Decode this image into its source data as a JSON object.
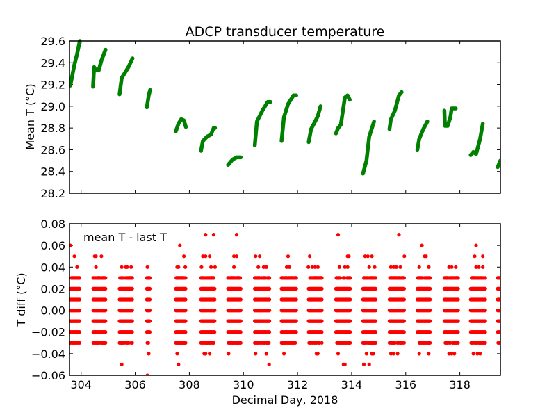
{
  "chart_data": [
    {
      "type": "line",
      "title": "ADCP transducer temperature",
      "xlabel": "",
      "ylabel": "Mean T (°C)",
      "xlim": [
        303.57,
        319.5
      ],
      "ylim": [
        28.2,
        29.6
      ],
      "yticks": [
        "28.2",
        "28.4",
        "28.6",
        "28.8",
        "29.0",
        "29.2",
        "29.4",
        "29.6"
      ],
      "ytick_values": [
        28.2,
        28.4,
        28.6,
        28.8,
        29.0,
        29.2,
        29.4,
        29.6
      ],
      "xtick_values": [
        304,
        306,
        308,
        310,
        312,
        314,
        316,
        318
      ],
      "color": "#008000",
      "grid": false,
      "series": [
        {
          "name": "mean T",
          "segments": [
            [
              [
                303.6,
                29.19
              ],
              [
                303.75,
                29.38
              ],
              [
                303.85,
                29.48
              ],
              [
                303.95,
                29.6
              ]
            ],
            [
              [
                304.44,
                29.18
              ],
              [
                304.48,
                29.36
              ],
              [
                304.55,
                29.33
              ],
              [
                304.65,
                29.33
              ],
              [
                304.75,
                29.42
              ],
              [
                304.9,
                29.52
              ]
            ],
            [
              [
                305.42,
                29.11
              ],
              [
                305.5,
                29.26
              ],
              [
                305.6,
                29.3
              ],
              [
                305.75,
                29.36
              ],
              [
                305.9,
                29.44
              ]
            ],
            [
              [
                306.43,
                28.99
              ],
              [
                306.5,
                29.1
              ],
              [
                306.55,
                29.15
              ]
            ],
            [
              [
                307.5,
                28.77
              ],
              [
                307.6,
                28.84
              ],
              [
                307.7,
                28.88
              ],
              [
                307.8,
                28.87
              ],
              [
                307.87,
                28.81
              ]
            ],
            [
              [
                308.43,
                28.59
              ],
              [
                308.5,
                28.68
              ],
              [
                308.65,
                28.72
              ],
              [
                308.8,
                28.74
              ],
              [
                308.9,
                28.8
              ],
              [
                308.95,
                28.8
              ]
            ],
            [
              [
                309.43,
                28.46
              ],
              [
                309.6,
                28.51
              ],
              [
                309.75,
                28.53
              ],
              [
                309.9,
                28.53
              ]
            ],
            [
              [
                310.42,
                28.64
              ],
              [
                310.5,
                28.86
              ],
              [
                310.7,
                28.96
              ],
              [
                310.9,
                29.04
              ],
              [
                311.0,
                29.04
              ]
            ],
            [
              [
                311.41,
                28.68
              ],
              [
                311.5,
                28.9
              ],
              [
                311.65,
                29.02
              ],
              [
                311.85,
                29.1
              ],
              [
                311.95,
                29.1
              ]
            ],
            [
              [
                312.41,
                28.67
              ],
              [
                312.5,
                28.79
              ],
              [
                312.65,
                28.86
              ],
              [
                312.75,
                28.91
              ],
              [
                312.85,
                29.0
              ]
            ],
            [
              [
                313.42,
                28.75
              ],
              [
                313.5,
                28.8
              ],
              [
                313.6,
                28.83
              ],
              [
                313.75,
                29.08
              ],
              [
                313.85,
                29.1
              ],
              [
                313.93,
                29.06
              ]
            ],
            [
              [
                314.42,
                28.38
              ],
              [
                314.55,
                28.5
              ],
              [
                314.65,
                28.72
              ],
              [
                314.83,
                28.86
              ]
            ],
            [
              [
                315.4,
                28.79
              ],
              [
                315.45,
                28.88
              ],
              [
                315.6,
                28.96
              ],
              [
                315.75,
                29.1
              ],
              [
                315.85,
                29.13
              ]
            ],
            [
              [
                316.43,
                28.6
              ],
              [
                316.5,
                28.7
              ],
              [
                316.65,
                28.79
              ],
              [
                316.8,
                28.86
              ]
            ],
            [
              [
                317.43,
                28.96
              ],
              [
                317.45,
                28.82
              ],
              [
                317.55,
                28.82
              ],
              [
                317.65,
                28.9
              ],
              [
                317.7,
                28.98
              ],
              [
                317.85,
                28.98
              ]
            ],
            [
              [
                318.4,
                28.55
              ],
              [
                318.5,
                28.58
              ],
              [
                318.6,
                28.56
              ],
              [
                318.75,
                28.7
              ],
              [
                318.85,
                28.84
              ]
            ],
            [
              [
                319.4,
                28.44
              ],
              [
                319.5,
                28.5
              ]
            ]
          ]
        }
      ]
    },
    {
      "type": "scatter",
      "title": "",
      "annotation": "mean T - last T",
      "xlabel": "Decimal Day, 2018",
      "ylabel": "T diff (°C)",
      "xlim": [
        303.57,
        319.5
      ],
      "ylim": [
        -0.06,
        0.08
      ],
      "xticks": [
        "304",
        "306",
        "308",
        "310",
        "312",
        "314",
        "316",
        "318"
      ],
      "xtick_values": [
        304,
        306,
        308,
        310,
        312,
        314,
        316,
        318
      ],
      "yticks": [
        "−0.06",
        "−0.04",
        "−0.02",
        "0.00",
        "0.02",
        "0.04",
        "0.06",
        "0.08"
      ],
      "ytick_values": [
        -0.06,
        -0.04,
        -0.02,
        0.0,
        0.02,
        0.04,
        0.06,
        0.08
      ],
      "color": "#ff0000",
      "grid": false,
      "dense_levels": [
        -0.03,
        -0.02,
        -0.01,
        0.0,
        0.01,
        0.02,
        0.03
      ],
      "clusters": [
        [
          303.6,
          303.95
        ],
        [
          304.45,
          304.9
        ],
        [
          305.42,
          305.9
        ],
        [
          306.43,
          306.55
        ],
        [
          307.5,
          307.87
        ],
        [
          308.43,
          308.95
        ],
        [
          309.43,
          309.9
        ],
        [
          310.42,
          310.97
        ],
        [
          311.41,
          311.95
        ],
        [
          312.41,
          312.9
        ],
        [
          313.42,
          313.95
        ],
        [
          314.42,
          314.9
        ],
        [
          315.4,
          315.95
        ],
        [
          316.43,
          316.9
        ],
        [
          317.43,
          317.95
        ],
        [
          318.4,
          318.95
        ],
        [
          319.4,
          319.5
        ]
      ],
      "outliers": [
        [
          303.6,
          0.06
        ],
        [
          303.75,
          0.05
        ],
        [
          303.85,
          0.04
        ],
        [
          304.5,
          0.05
        ],
        [
          304.55,
          0.05
        ],
        [
          304.75,
          0.05
        ],
        [
          304.55,
          0.04
        ],
        [
          305.5,
          -0.05
        ],
        [
          305.5,
          0.04
        ],
        [
          305.65,
          0.04
        ],
        [
          305.7,
          0.04
        ],
        [
          305.85,
          0.04
        ],
        [
          306.45,
          0.04
        ],
        [
          306.5,
          -0.04
        ],
        [
          306.45,
          -0.06
        ],
        [
          307.65,
          0.06
        ],
        [
          307.8,
          0.05
        ],
        [
          307.55,
          0.04
        ],
        [
          307.6,
          0.04
        ],
        [
          307.85,
          0.04
        ],
        [
          307.55,
          -0.04
        ],
        [
          307.6,
          -0.05
        ],
        [
          308.6,
          0.07
        ],
        [
          308.9,
          0.07
        ],
        [
          308.5,
          0.05
        ],
        [
          308.6,
          0.05
        ],
        [
          308.75,
          0.05
        ],
        [
          308.45,
          0.04
        ],
        [
          308.8,
          0.04
        ],
        [
          308.95,
          0.04
        ],
        [
          308.55,
          -0.04
        ],
        [
          308.6,
          -0.04
        ],
        [
          308.75,
          -0.04
        ],
        [
          309.75,
          0.07
        ],
        [
          309.65,
          0.05
        ],
        [
          309.75,
          0.05
        ],
        [
          309.65,
          0.04
        ],
        [
          309.45,
          -0.04
        ],
        [
          310.45,
          0.05
        ],
        [
          310.6,
          0.05
        ],
        [
          310.55,
          0.04
        ],
        [
          310.75,
          0.04
        ],
        [
          310.85,
          0.04
        ],
        [
          310.45,
          -0.04
        ],
        [
          310.85,
          -0.04
        ],
        [
          310.95,
          -0.05
        ],
        [
          311.65,
          0.05
        ],
        [
          311.6,
          0.04
        ],
        [
          311.7,
          0.04
        ],
        [
          311.5,
          -0.04
        ],
        [
          312.45,
          0.05
        ],
        [
          312.4,
          0.04
        ],
        [
          312.55,
          0.04
        ],
        [
          312.65,
          0.04
        ],
        [
          312.75,
          0.04
        ],
        [
          312.7,
          -0.04
        ],
        [
          312.75,
          -0.04
        ],
        [
          313.5,
          0.07
        ],
        [
          313.85,
          0.05
        ],
        [
          313.9,
          0.05
        ],
        [
          313.55,
          0.04
        ],
        [
          313.75,
          0.04
        ],
        [
          313.85,
          0.04
        ],
        [
          313.5,
          -0.04
        ],
        [
          313.7,
          -0.05
        ],
        [
          313.75,
          -0.05
        ],
        [
          314.5,
          0.05
        ],
        [
          314.6,
          0.05
        ],
        [
          314.75,
          0.05
        ],
        [
          314.65,
          0.04
        ],
        [
          314.85,
          0.04
        ],
        [
          314.55,
          -0.04
        ],
        [
          314.75,
          -0.04
        ],
        [
          314.8,
          -0.04
        ],
        [
          314.45,
          -0.05
        ],
        [
          314.65,
          -0.05
        ],
        [
          315.75,
          0.07
        ],
        [
          315.95,
          0.05
        ],
        [
          315.45,
          0.04
        ],
        [
          315.55,
          0.04
        ],
        [
          315.65,
          0.04
        ],
        [
          315.8,
          0.04
        ],
        [
          315.45,
          -0.04
        ],
        [
          315.55,
          -0.04
        ],
        [
          315.7,
          -0.04
        ],
        [
          316.6,
          0.06
        ],
        [
          316.7,
          0.05
        ],
        [
          316.75,
          0.05
        ],
        [
          316.5,
          0.04
        ],
        [
          316.85,
          0.04
        ],
        [
          316.5,
          -0.04
        ],
        [
          316.85,
          -0.04
        ],
        [
          317.6,
          0.04
        ],
        [
          317.7,
          0.04
        ],
        [
          317.85,
          0.04
        ],
        [
          317.6,
          -0.04
        ],
        [
          317.7,
          -0.04
        ],
        [
          317.8,
          -0.04
        ],
        [
          318.6,
          0.06
        ],
        [
          318.55,
          0.05
        ],
        [
          318.85,
          0.05
        ],
        [
          318.6,
          0.04
        ],
        [
          318.7,
          0.04
        ],
        [
          318.85,
          0.04
        ],
        [
          318.5,
          -0.04
        ],
        [
          318.65,
          -0.04
        ],
        [
          318.75,
          -0.04
        ]
      ]
    }
  ]
}
